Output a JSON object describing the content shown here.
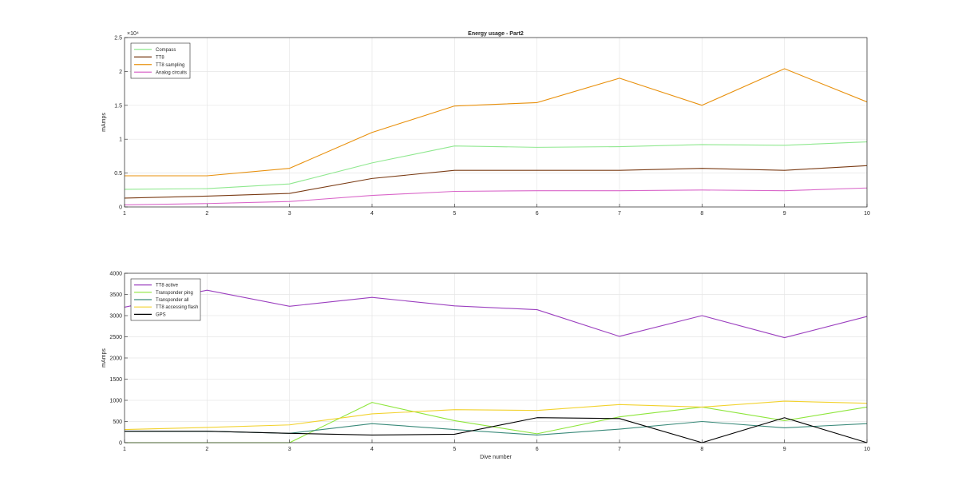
{
  "figure_title": "Energy usage - Part2",
  "chart_data": [
    {
      "type": "line",
      "title": "Energy usage - Part2",
      "xlabel": "",
      "ylabel": "mAmps",
      "y_exponent": "×10⁴",
      "x": [
        1,
        2,
        3,
        4,
        5,
        6,
        7,
        8,
        9,
        10
      ],
      "xlim": [
        1,
        10
      ],
      "ylim": [
        0,
        2.5
      ],
      "yticks": [
        0,
        0.5,
        1,
        1.5,
        2,
        2.5
      ],
      "ytick_labels": [
        "0",
        "0.5",
        "1",
        "1.5",
        "2",
        "2.5"
      ],
      "grid": true,
      "legend_position": "top-left",
      "series": [
        {
          "name": "Compass",
          "color": "#8fe88f",
          "values": [
            0.26,
            0.27,
            0.34,
            0.65,
            0.9,
            0.88,
            0.89,
            0.92,
            0.91,
            0.96
          ]
        },
        {
          "name": "TT8",
          "color": "#7a3b14",
          "values": [
            0.13,
            0.16,
            0.2,
            0.42,
            0.54,
            0.54,
            0.54,
            0.57,
            0.54,
            0.61
          ]
        },
        {
          "name": "TT8 sampling",
          "color": "#e8900c",
          "values": [
            0.46,
            0.46,
            0.57,
            1.1,
            1.49,
            1.54,
            1.9,
            1.5,
            2.04,
            1.55
          ]
        },
        {
          "name": "Analog circuits",
          "color": "#d966c9",
          "values": [
            0.03,
            0.05,
            0.08,
            0.17,
            0.23,
            0.24,
            0.24,
            0.25,
            0.24,
            0.28
          ]
        }
      ]
    },
    {
      "type": "line",
      "title": "",
      "xlabel": "Dive number",
      "ylabel": "mAmps",
      "x": [
        1,
        2,
        3,
        4,
        5,
        6,
        7,
        8,
        9,
        10
      ],
      "xlim": [
        1,
        10
      ],
      "ylim": [
        0,
        4000
      ],
      "yticks": [
        0,
        500,
        1000,
        1500,
        2000,
        2500,
        3000,
        3500,
        4000
      ],
      "ytick_labels": [
        "0",
        "500",
        "1000",
        "1500",
        "2000",
        "2500",
        "3000",
        "3500",
        "4000"
      ],
      "grid": true,
      "legend_position": "top-left",
      "series": [
        {
          "name": "TT8 active",
          "color": "#9b3fbf",
          "values": [
            3200,
            3600,
            3220,
            3430,
            3230,
            3140,
            2510,
            3000,
            2480,
            2980
          ]
        },
        {
          "name": "Transponder ping",
          "color": "#8ee63c",
          "values": [
            0,
            0,
            0,
            950,
            520,
            210,
            610,
            840,
            520,
            840
          ]
        },
        {
          "name": "Transponder all",
          "color": "#3a8a7a",
          "values": [
            270,
            270,
            220,
            450,
            310,
            180,
            320,
            500,
            350,
            450
          ]
        },
        {
          "name": "TT8 accessing flash",
          "color": "#f2d22e",
          "values": [
            310,
            360,
            420,
            680,
            780,
            760,
            900,
            840,
            980,
            930
          ]
        },
        {
          "name": "GPS",
          "color": "#000000",
          "values": [
            270,
            270,
            220,
            180,
            200,
            590,
            570,
            0,
            590,
            0
          ]
        }
      ]
    }
  ]
}
